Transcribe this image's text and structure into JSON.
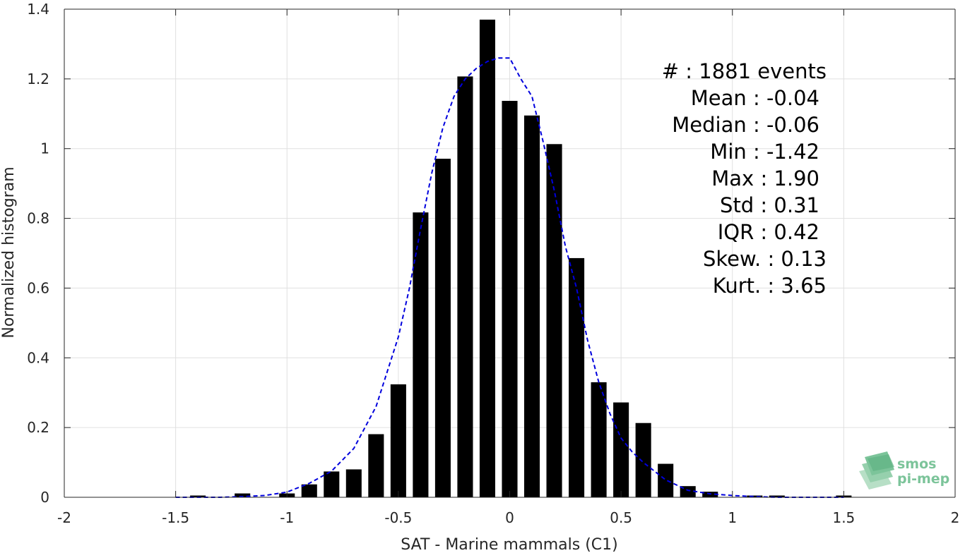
{
  "chart_data": {
    "type": "bar",
    "xlabel": "SAT - Marine mammals (C1)",
    "ylabel": "Normalized histogram",
    "xlim": [
      -2,
      2
    ],
    "ylim": [
      0,
      1.4
    ],
    "xticks": [
      -2,
      -1.5,
      -1,
      -0.5,
      0,
      0.5,
      1,
      1.5,
      2
    ],
    "xtick_labels": [
      "-2",
      "-1.5",
      "-1",
      "-0.5",
      "0",
      "0.5",
      "1",
      "1.5",
      "2"
    ],
    "yticks": [
      0,
      0.2,
      0.4,
      0.6,
      0.8,
      1,
      1.2,
      1.4
    ],
    "ytick_labels": [
      "0",
      "0.2",
      "0.4",
      "0.6",
      "0.8",
      "1",
      "1.2",
      "1.4"
    ],
    "grid": true,
    "bar_color": "#000000",
    "bar_width": 0.07,
    "bars": {
      "x": [
        -1.4,
        -1.2,
        -1.0,
        -0.9,
        -0.8,
        -0.7,
        -0.6,
        -0.5,
        -0.4,
        -0.3,
        -0.2,
        -0.1,
        0.0,
        0.1,
        0.2,
        0.3,
        0.4,
        0.5,
        0.6,
        0.7,
        0.8,
        0.9,
        1.1,
        1.2,
        1.5
      ],
      "values": [
        0.005,
        0.011,
        0.011,
        0.037,
        0.074,
        0.08,
        0.181,
        0.324,
        0.817,
        0.971,
        1.207,
        1.37,
        1.137,
        1.095,
        1.013,
        0.686,
        0.33,
        0.272,
        0.213,
        0.096,
        0.032,
        0.016,
        0.005,
        0.005,
        0.005
      ]
    },
    "fit_curve": {
      "color": "#0000dd",
      "style": "dashed",
      "x": [
        -1.5,
        -1.4,
        -1.3,
        -1.2,
        -1.1,
        -1.0,
        -0.9,
        -0.8,
        -0.7,
        -0.6,
        -0.5,
        -0.45,
        -0.4,
        -0.35,
        -0.3,
        -0.25,
        -0.2,
        -0.15,
        -0.1,
        -0.05,
        0.0,
        0.05,
        0.1,
        0.15,
        0.2,
        0.25,
        0.3,
        0.35,
        0.4,
        0.45,
        0.5,
        0.55,
        0.6,
        0.7,
        0.8,
        0.9,
        1.0,
        1.1,
        1.2,
        1.3,
        1.4,
        1.5
      ],
      "y": [
        0.0,
        0.0,
        0.0,
        0.002,
        0.005,
        0.015,
        0.04,
        0.075,
        0.14,
        0.26,
        0.46,
        0.6,
        0.77,
        0.93,
        1.06,
        1.15,
        1.2,
        1.23,
        1.25,
        1.26,
        1.26,
        1.2,
        1.15,
        1.02,
        0.88,
        0.72,
        0.6,
        0.45,
        0.33,
        0.24,
        0.17,
        0.13,
        0.1,
        0.05,
        0.02,
        0.01,
        0.005,
        0.002,
        0.0,
        0.0,
        0.0,
        0.0
      ]
    },
    "stats": [
      "#  : 1881 events",
      "Mean : -0.04",
      "Median : -0.06",
      "Min : -1.42",
      "Max : 1.90",
      "Std : 0.31",
      "IQR : 0.42",
      "Skew. : 0.13",
      "Kurt. : 3.65"
    ]
  },
  "logo": {
    "line1": "smos",
    "line2": "pi-mep",
    "color": "#7cc49a"
  }
}
